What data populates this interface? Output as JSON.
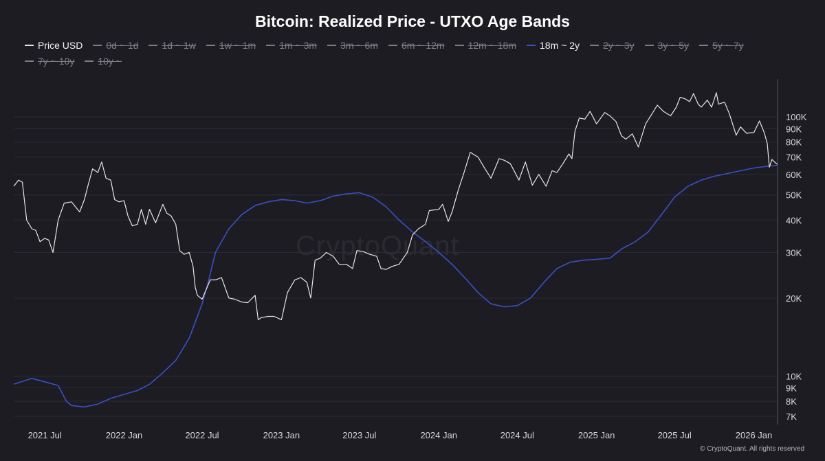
{
  "chart_data": {
    "type": "line",
    "title": "Bitcoin: Realized Price - UTXO Age Bands",
    "y_scale": "log",
    "ylim": [
      6500,
      140000
    ],
    "xlim": [
      "2021-04-20",
      "2026-02-25"
    ],
    "grid": true,
    "legend_position": "top",
    "x_tick_labels": [
      "2021 Jul",
      "2022 Jan",
      "2022 Jul",
      "2023 Jan",
      "2023 Jul",
      "2024 Jan",
      "2024 Jul",
      "2025 Jan",
      "2025 Jul",
      "2026 Jan"
    ],
    "x_tick_dates": [
      "2021-07-01",
      "2022-01-01",
      "2022-07-01",
      "2023-01-01",
      "2023-07-01",
      "2024-01-01",
      "2024-07-01",
      "2025-01-01",
      "2025-07-01",
      "2026-01-01"
    ],
    "y_tick_labels": [
      "100K",
      "90K",
      "80K",
      "70K",
      "60K",
      "50K",
      "40K",
      "30K",
      "20K",
      "10K",
      "9K",
      "8K",
      "7K"
    ],
    "y_tick_values": [
      100000,
      90000,
      80000,
      70000,
      60000,
      50000,
      40000,
      30000,
      20000,
      10000,
      9000,
      8000,
      7000
    ],
    "legend": [
      {
        "label": "Price USD",
        "active": true,
        "color": "#e6e6ea"
      },
      {
        "label": "0d ~ 1d",
        "active": false,
        "color": "#7d7d86"
      },
      {
        "label": "1d ~ 1w",
        "active": false,
        "color": "#7d7d86"
      },
      {
        "label": "1w ~ 1m",
        "active": false,
        "color": "#7d7d86"
      },
      {
        "label": "1m ~ 3m",
        "active": false,
        "color": "#7d7d86"
      },
      {
        "label": "3m ~ 6m",
        "active": false,
        "color": "#7d7d86"
      },
      {
        "label": "6m ~ 12m",
        "active": false,
        "color": "#7d7d86"
      },
      {
        "label": "12m ~ 18m",
        "active": false,
        "color": "#7d7d86"
      },
      {
        "label": "18m ~ 2y",
        "active": true,
        "color": "#3d4fc4"
      },
      {
        "label": "2y ~ 3y",
        "active": false,
        "color": "#7d7d86"
      },
      {
        "label": "3y ~ 5y",
        "active": false,
        "color": "#7d7d86"
      },
      {
        "label": "5y ~ 7y",
        "active": false,
        "color": "#7d7d86"
      },
      {
        "label": "7y ~ 10y",
        "active": false,
        "color": "#7d7d86"
      },
      {
        "label": "10y ~",
        "active": false,
        "color": "#7d7d86"
      }
    ],
    "series": [
      {
        "name": "Price USD",
        "color": "#e6e6ea",
        "x": [
          "2021-04-20",
          "2021-05-01",
          "2021-05-10",
          "2021-05-20",
          "2021-06-01",
          "2021-06-10",
          "2021-06-20",
          "2021-07-01",
          "2021-07-10",
          "2021-07-20",
          "2021-08-01",
          "2021-08-15",
          "2021-09-01",
          "2021-09-10",
          "2021-09-20",
          "2021-10-01",
          "2021-10-10",
          "2021-10-20",
          "2021-11-01",
          "2021-11-10",
          "2021-11-20",
          "2021-12-01",
          "2021-12-10",
          "2021-12-20",
          "2022-01-01",
          "2022-01-10",
          "2022-01-20",
          "2022-02-01",
          "2022-02-10",
          "2022-02-20",
          "2022-03-01",
          "2022-03-15",
          "2022-04-01",
          "2022-04-10",
          "2022-04-20",
          "2022-05-01",
          "2022-05-10",
          "2022-05-20",
          "2022-06-01",
          "2022-06-10",
          "2022-06-15",
          "2022-06-20",
          "2022-07-01",
          "2022-07-10",
          "2022-07-20",
          "2022-08-01",
          "2022-08-15",
          "2022-09-01",
          "2022-09-15",
          "2022-10-01",
          "2022-10-15",
          "2022-11-01",
          "2022-11-08",
          "2022-11-15",
          "2022-12-01",
          "2022-12-15",
          "2023-01-01",
          "2023-01-15",
          "2023-02-01",
          "2023-02-15",
          "2023-03-01",
          "2023-03-10",
          "2023-03-20",
          "2023-04-01",
          "2023-04-15",
          "2023-05-01",
          "2023-05-15",
          "2023-06-01",
          "2023-06-15",
          "2023-06-25",
          "2023-07-10",
          "2023-07-25",
          "2023-08-10",
          "2023-08-20",
          "2023-09-01",
          "2023-09-15",
          "2023-10-01",
          "2023-10-20",
          "2023-11-01",
          "2023-11-15",
          "2023-12-01",
          "2023-12-10",
          "2024-01-01",
          "2024-01-10",
          "2024-01-23",
          "2024-02-01",
          "2024-02-15",
          "2024-03-01",
          "2024-03-14",
          "2024-04-01",
          "2024-04-15",
          "2024-05-01",
          "2024-05-20",
          "2024-06-01",
          "2024-06-15",
          "2024-07-05",
          "2024-07-20",
          "2024-08-05",
          "2024-08-20",
          "2024-09-06",
          "2024-09-20",
          "2024-10-01",
          "2024-10-15",
          "2024-10-29",
          "2024-11-05",
          "2024-11-12",
          "2024-11-22",
          "2024-12-05",
          "2024-12-17",
          "2025-01-01",
          "2025-01-20",
          "2025-02-01",
          "2025-02-15",
          "2025-02-28",
          "2025-03-10",
          "2025-03-25",
          "2025-04-08",
          "2025-04-25",
          "2025-05-10",
          "2025-05-22",
          "2025-06-05",
          "2025-06-22",
          "2025-07-05",
          "2025-07-14",
          "2025-07-25",
          "2025-08-05",
          "2025-08-14",
          "2025-08-25",
          "2025-09-01",
          "2025-09-15",
          "2025-09-25",
          "2025-10-06",
          "2025-10-11",
          "2025-10-25",
          "2025-11-05",
          "2025-11-21",
          "2025-12-01",
          "2025-12-15",
          "2026-01-01",
          "2026-01-14",
          "2026-01-25",
          "2026-02-01",
          "2026-02-06",
          "2026-02-12",
          "2026-02-20",
          "2026-02-25"
        ],
        "y": [
          54000,
          57000,
          56000,
          40000,
          37000,
          36500,
          33000,
          34000,
          33500,
          30000,
          40000,
          46500,
          47000,
          45000,
          43000,
          48000,
          55000,
          63000,
          61000,
          67000,
          58000,
          57000,
          48000,
          47000,
          47500,
          41500,
          38000,
          38500,
          44000,
          38500,
          44000,
          39000,
          46000,
          42500,
          41500,
          38500,
          30500,
          29500,
          30000,
          26500,
          22000,
          20500,
          19800,
          21500,
          23500,
          23500,
          24000,
          20000,
          19800,
          19300,
          19200,
          20500,
          16500,
          16800,
          17000,
          17000,
          16500,
          21000,
          23500,
          24000,
          23000,
          20000,
          28000,
          28500,
          30000,
          29000,
          27000,
          27000,
          26000,
          30500,
          30200,
          29500,
          29000,
          26000,
          25800,
          26500,
          27000,
          30000,
          35000,
          37000,
          38500,
          43500,
          44000,
          46000,
          39500,
          43000,
          52000,
          62000,
          73000,
          70000,
          64000,
          58000,
          69000,
          68000,
          66000,
          57000,
          67000,
          54500,
          60000,
          54000,
          62000,
          61000,
          66000,
          72000,
          69000,
          88000,
          99000,
          98000,
          105000,
          94000,
          104000,
          101000,
          96000,
          84500,
          82000,
          86000,
          76500,
          94000,
          103000,
          111000,
          105000,
          101000,
          109000,
          119000,
          117500,
          114500,
          123000,
          112000,
          109000,
          116000,
          109000,
          124000,
          112000,
          114000,
          103000,
          85000,
          91500,
          86500,
          87000,
          96500,
          87000,
          79000,
          64000,
          68500,
          66500,
          65500
        ]
      },
      {
        "name": "18m ~ 2y",
        "color": "#3d4fc4",
        "x": [
          "2021-04-20",
          "2021-05-15",
          "2021-06-01",
          "2021-07-01",
          "2021-08-01",
          "2021-08-20",
          "2021-09-01",
          "2021-10-01",
          "2021-11-01",
          "2021-12-01",
          "2022-01-01",
          "2022-02-01",
          "2022-03-01",
          "2022-04-01",
          "2022-05-01",
          "2022-06-01",
          "2022-07-01",
          "2022-07-15",
          "2022-08-01",
          "2022-09-01",
          "2022-10-01",
          "2022-11-01",
          "2022-12-01",
          "2023-01-01",
          "2023-02-01",
          "2023-03-01",
          "2023-04-01",
          "2023-05-01",
          "2023-06-01",
          "2023-07-01",
          "2023-08-01",
          "2023-09-01",
          "2023-10-01",
          "2023-11-01",
          "2023-12-01",
          "2024-01-01",
          "2024-02-01",
          "2024-03-01",
          "2024-04-01",
          "2024-05-01",
          "2024-06-01",
          "2024-07-01",
          "2024-08-01",
          "2024-09-01",
          "2024-10-01",
          "2024-11-01",
          "2024-12-01",
          "2025-01-01",
          "2025-02-01",
          "2025-03-01",
          "2025-04-01",
          "2025-05-01",
          "2025-06-01",
          "2025-07-01",
          "2025-08-01",
          "2025-09-01",
          "2025-10-01",
          "2025-11-01",
          "2025-12-01",
          "2026-01-01",
          "2026-02-01",
          "2026-02-25"
        ],
        "y": [
          9300,
          9600,
          9800,
          9500,
          9200,
          8000,
          7700,
          7600,
          7800,
          8200,
          8500,
          8800,
          9300,
          10300,
          11500,
          14000,
          19000,
          23000,
          30000,
          37000,
          42000,
          45500,
          47000,
          48000,
          47500,
          46500,
          47500,
          49500,
          50500,
          51000,
          49000,
          45000,
          40000,
          36000,
          33000,
          30000,
          27000,
          24000,
          21000,
          19000,
          18500,
          18700,
          20000,
          23000,
          26000,
          27500,
          28000,
          28200,
          28500,
          31000,
          33000,
          36000,
          42000,
          49000,
          54000,
          57000,
          59000,
          60500,
          62000,
          63500,
          64500,
          65000
        ]
      }
    ]
  },
  "watermark": "CryptoQuant",
  "credit": "© CryptoQuant. All rights reserved"
}
